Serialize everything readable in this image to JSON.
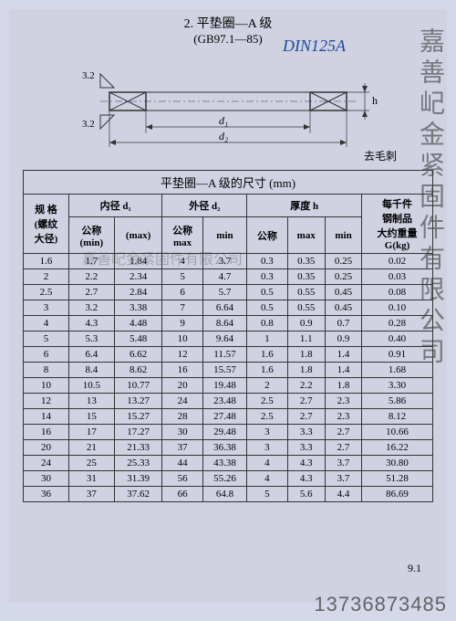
{
  "header": {
    "section_num": "2.",
    "title": "平垫圈—A 级",
    "standard": "(GB97.1—85)",
    "handwritten": "DIN125A"
  },
  "diagram": {
    "ra_top": "3.2",
    "ra_bottom": "3.2",
    "d1": "d₁",
    "d2": "d₂",
    "h": "h",
    "note": "去毛刺"
  },
  "table": {
    "title": "平垫圈—A 级的尺寸 (mm)",
    "group_headers": {
      "spec": "规 格\n(螺纹\n大径)",
      "d1": "内径 d₁",
      "d2": "外径 d₂",
      "h": "厚度 h",
      "weight": "每千件\n钢制品\n大约重量\nG(kg)"
    },
    "sub_headers": {
      "d1_nom": "公称\n(min)",
      "d1_max": "(max)",
      "d2_nom": "公称\nmax",
      "d2_min": "min",
      "h_nom": "公称",
      "h_max": "max",
      "h_min": "min"
    },
    "rows": [
      [
        "1.6",
        "1.7",
        "1.84",
        "4",
        "3.7",
        "0.3",
        "0.35",
        "0.25",
        "0.02"
      ],
      [
        "2",
        "2.2",
        "2.34",
        "5",
        "4.7",
        "0.3",
        "0.35",
        "0.25",
        "0.03"
      ],
      [
        "2.5",
        "2.7",
        "2.84",
        "6",
        "5.7",
        "0.5",
        "0.55",
        "0.45",
        "0.08"
      ],
      [
        "3",
        "3.2",
        "3.38",
        "7",
        "6.64",
        "0.5",
        "0.55",
        "0.45",
        "0.10"
      ],
      [
        "4",
        "4.3",
        "4.48",
        "9",
        "8.64",
        "0.8",
        "0.9",
        "0.7",
        "0.28"
      ],
      [
        "5",
        "5.3",
        "5.48",
        "10",
        "9.64",
        "1",
        "1.1",
        "0.9",
        "0.40"
      ],
      [
        "6",
        "6.4",
        "6.62",
        "12",
        "11.57",
        "1.6",
        "1.8",
        "1.4",
        "0.91"
      ],
      [
        "8",
        "8.4",
        "8.62",
        "16",
        "15.57",
        "1.6",
        "1.8",
        "1.4",
        "1.68"
      ],
      [
        "10",
        "10.5",
        "10.77",
        "20",
        "19.48",
        "2",
        "2.2",
        "1.8",
        "3.30"
      ],
      [
        "12",
        "13",
        "13.27",
        "24",
        "23.48",
        "2.5",
        "2.7",
        "2.3",
        "5.86"
      ],
      [
        "14",
        "15",
        "15.27",
        "28",
        "27.48",
        "2.5",
        "2.7",
        "2.3",
        "8.12"
      ],
      [
        "16",
        "17",
        "17.27",
        "30",
        "29.48",
        "3",
        "3.3",
        "2.7",
        "10.66"
      ],
      [
        "20",
        "21",
        "21.33",
        "37",
        "36.38",
        "3",
        "3.3",
        "2.7",
        "16.22"
      ],
      [
        "24",
        "25",
        "25.33",
        "44",
        "43.38",
        "4",
        "4.3",
        "3.7",
        "30.80"
      ],
      [
        "30",
        "31",
        "31.39",
        "56",
        "55.26",
        "4",
        "4.3",
        "3.7",
        "51.28"
      ],
      [
        "36",
        "37",
        "37.62",
        "66",
        "64.8",
        "5",
        "5.6",
        "4.4",
        "86.69"
      ]
    ]
  },
  "watermarks": {
    "vertical": "嘉善屺金紧固件有限公司",
    "horizontal": "嘉善屺金紧固件有限公司",
    "phone": "13736873485"
  },
  "corner": "9.1"
}
